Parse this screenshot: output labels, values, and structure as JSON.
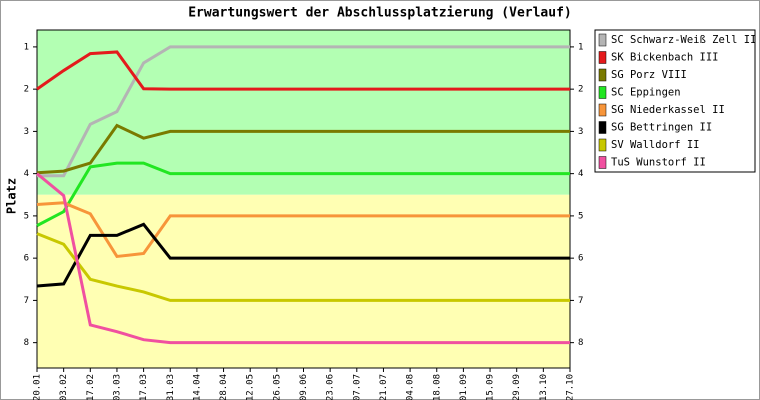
{
  "chart_data": {
    "type": "line",
    "title": "Erwartungswert der Abschlussplatzierung (Verlauf)",
    "y_label": "Platz",
    "categories": [
      "20.01",
      "03.02",
      "17.02",
      "03.03",
      "17.03",
      "31.03",
      "14.04",
      "28.04",
      "12.05",
      "26.05",
      "09.06",
      "23.06",
      "07.07",
      "21.07",
      "04.08",
      "18.08",
      "01.09",
      "15.09",
      "29.09",
      "13.10",
      "27.10"
    ],
    "ylim": [
      8.6,
      0.6
    ],
    "yticks": [
      1,
      2,
      3,
      4,
      5,
      6,
      7,
      8
    ],
    "zone_split": 4.5,
    "zone_colors": [
      "#b3ffb3",
      "#ffffb3"
    ],
    "series": [
      {
        "name": "SC Schwarz-Weiß Zell II",
        "color": "#b4b4b4",
        "values": [
          4.05,
          4.05,
          2.83,
          2.53,
          1.38,
          1,
          1,
          1,
          1,
          1,
          1,
          1,
          1,
          1,
          1,
          1,
          1,
          1,
          1,
          1,
          1
        ]
      },
      {
        "name": "SK Bickenbach III",
        "color": "#e41a1c",
        "values": [
          2.0,
          1.56,
          1.16,
          1.12,
          1.99,
          2,
          2,
          2,
          2,
          2,
          2,
          2,
          2,
          2,
          2,
          2,
          2,
          2,
          2,
          2,
          2
        ]
      },
      {
        "name": "SG Porz VIII",
        "color": "#7a7a00",
        "values": [
          3.98,
          3.94,
          3.75,
          2.86,
          3.16,
          3,
          3,
          3,
          3,
          3,
          3,
          3,
          3,
          3,
          3,
          3,
          3,
          3,
          3,
          3,
          3
        ]
      },
      {
        "name": "SC Eppingen",
        "color": "#22e622",
        "values": [
          5.23,
          4.9,
          3.84,
          3.75,
          3.75,
          4,
          4,
          4,
          4,
          4,
          4,
          4,
          4,
          4,
          4,
          4,
          4,
          4,
          4,
          4,
          4
        ]
      },
      {
        "name": "SG Niederkassel II",
        "color": "#f7953a",
        "values": [
          4.73,
          4.69,
          4.95,
          5.96,
          5.89,
          5,
          5,
          5,
          5,
          5,
          5,
          5,
          5,
          5,
          5,
          5,
          5,
          5,
          5,
          5,
          5
        ]
      },
      {
        "name": "SG Bettringen II",
        "color": "#000000",
        "values": [
          6.66,
          6.61,
          5.46,
          5.46,
          5.2,
          6,
          6,
          6,
          6,
          6,
          6,
          6,
          6,
          6,
          6,
          6,
          6,
          6,
          6,
          6,
          6
        ]
      },
      {
        "name": "SV Walldorf II",
        "color": "#c8c800",
        "values": [
          5.42,
          5.67,
          6.5,
          6.66,
          6.8,
          7,
          7,
          7,
          7,
          7,
          7,
          7,
          7,
          7,
          7,
          7,
          7,
          7,
          7,
          7,
          7
        ]
      },
      {
        "name": "TuS Wunstorf II",
        "color": "#f050a0",
        "values": [
          4.0,
          4.52,
          7.58,
          7.74,
          7.93,
          8,
          8,
          8,
          8,
          8,
          8,
          8,
          8,
          8,
          8,
          8,
          8,
          8,
          8,
          8,
          8
        ]
      }
    ]
  }
}
